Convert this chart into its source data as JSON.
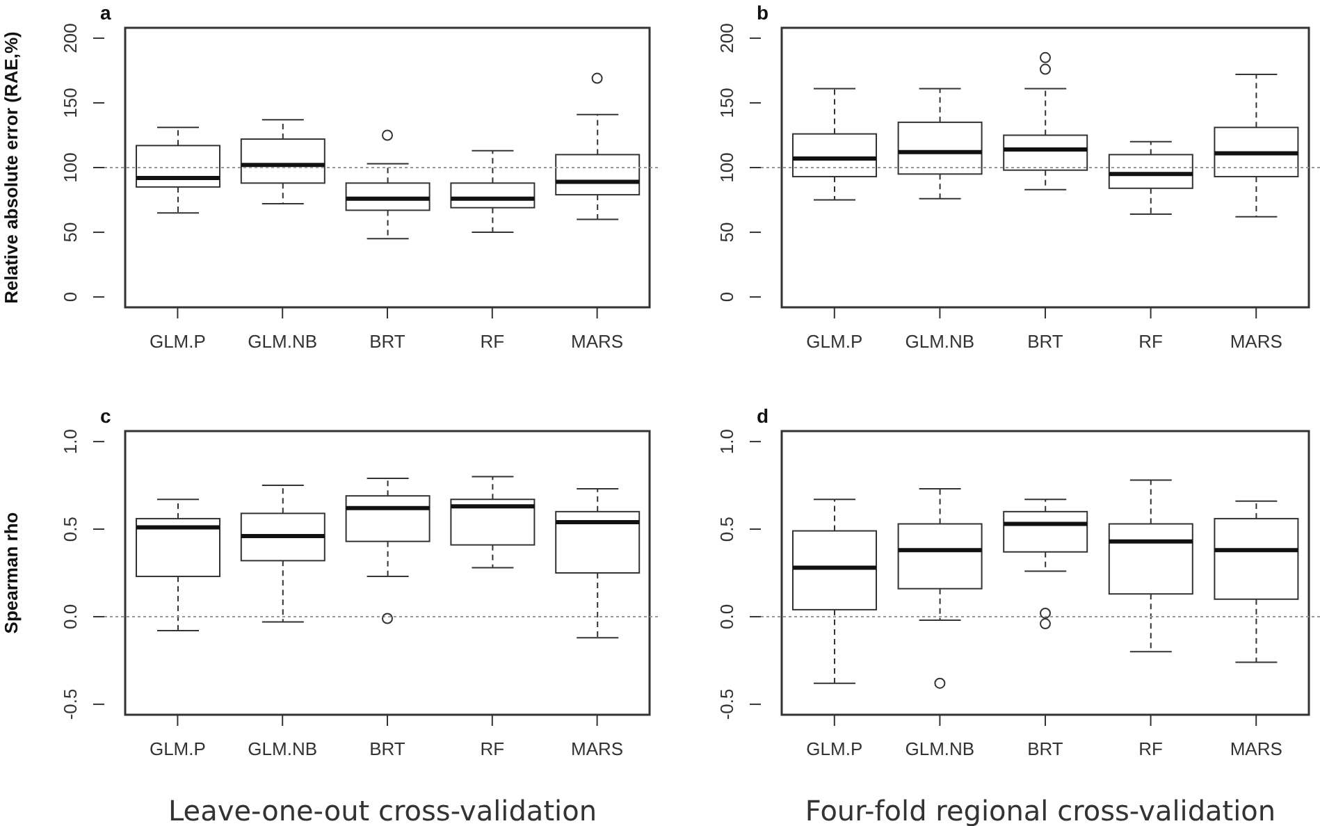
{
  "chart_data": [
    {
      "type": "box",
      "title": "a",
      "ylabel": "Relative absolute error (RAE,%)",
      "categories": [
        "GLM.P",
        "GLM.NB",
        "BRT",
        "RF",
        "MARS"
      ],
      "ylim": [
        -8,
        208
      ],
      "yticks": [
        0,
        50,
        100,
        150,
        200
      ],
      "ref_lines": [
        {
          "axis": "y",
          "value": 100,
          "line_style": "dotted",
          "color": "#999999"
        }
      ],
      "boxes": [
        {
          "low": 65,
          "q1": 85,
          "median": 92,
          "q3": 117,
          "high": 131
        },
        {
          "low": 72,
          "q1": 88,
          "median": 102,
          "q3": 122,
          "high": 137
        },
        {
          "low": 45,
          "q1": 67,
          "median": 76,
          "q3": 88,
          "high": 103,
          "outliers": [
            125
          ]
        },
        {
          "low": 50,
          "q1": 69,
          "median": 76,
          "q3": 88,
          "high": 113
        },
        {
          "low": 60,
          "q1": 79,
          "median": 89,
          "q3": 110,
          "high": 141,
          "outliers": [
            169
          ]
        }
      ]
    },
    {
      "type": "box",
      "title": "b",
      "categories": [
        "GLM.P",
        "GLM.NB",
        "BRT",
        "RF",
        "MARS"
      ],
      "ylim": [
        -8,
        208
      ],
      "yticks": [
        0,
        50,
        100,
        150,
        200
      ],
      "ref_lines": [
        {
          "axis": "y",
          "value": 100,
          "line_style": "dotted",
          "color": "#999999"
        }
      ],
      "boxes": [
        {
          "low": 75,
          "q1": 93,
          "median": 107,
          "q3": 126,
          "high": 161
        },
        {
          "low": 76,
          "q1": 95,
          "median": 112,
          "q3": 135,
          "high": 161
        },
        {
          "low": 83,
          "q1": 98,
          "median": 114,
          "q3": 125,
          "high": 161,
          "outliers": [
            176,
            185
          ]
        },
        {
          "low": 64,
          "q1": 84,
          "median": 95,
          "q3": 110,
          "high": 120
        },
        {
          "low": 62,
          "q1": 93,
          "median": 111,
          "q3": 131,
          "high": 172
        }
      ]
    },
    {
      "type": "box",
      "title": "c",
      "ylabel": "Spearman rho",
      "xlabel": "Leave-one-out cross-validation",
      "categories": [
        "GLM.P",
        "GLM.NB",
        "BRT",
        "RF",
        "MARS"
      ],
      "ylim": [
        -0.56,
        1.06
      ],
      "yticks": [
        {
          "value": -0.5,
          "label": "-0.5"
        },
        {
          "value": 0,
          "label": "0.0"
        },
        {
          "value": 0.5,
          "label": "0.5"
        },
        {
          "value": 1,
          "label": "1.0"
        }
      ],
      "ref_lines": [
        {
          "axis": "y",
          "value": 0,
          "line_style": "dotted",
          "color": "#999999"
        }
      ],
      "boxes": [
        {
          "low": -0.08,
          "q1": 0.23,
          "median": 0.51,
          "q3": 0.56,
          "high": 0.67
        },
        {
          "low": -0.03,
          "q1": 0.32,
          "median": 0.46,
          "q3": 0.59,
          "high": 0.75
        },
        {
          "low": 0.23,
          "q1": 0.43,
          "median": 0.62,
          "q3": 0.69,
          "high": 0.79,
          "outliers": [
            -0.01
          ]
        },
        {
          "low": 0.28,
          "q1": 0.41,
          "median": 0.63,
          "q3": 0.67,
          "high": 0.8
        },
        {
          "low": -0.12,
          "q1": 0.25,
          "median": 0.54,
          "q3": 0.6,
          "high": 0.73
        }
      ]
    },
    {
      "type": "box",
      "title": "d",
      "xlabel": "Four-fold regional cross-validation",
      "categories": [
        "GLM.P",
        "GLM.NB",
        "BRT",
        "RF",
        "MARS"
      ],
      "ylim": [
        -0.56,
        1.06
      ],
      "yticks": [
        {
          "value": -0.5,
          "label": "-0.5"
        },
        {
          "value": 0,
          "label": "0.0"
        },
        {
          "value": 0.5,
          "label": "0.5"
        },
        {
          "value": 1,
          "label": "1.0"
        }
      ],
      "ref_lines": [
        {
          "axis": "y",
          "value": 0,
          "line_style": "dotted",
          "color": "#999999"
        }
      ],
      "boxes": [
        {
          "low": -0.38,
          "q1": 0.04,
          "median": 0.28,
          "q3": 0.49,
          "high": 0.67
        },
        {
          "low": -0.02,
          "q1": 0.16,
          "median": 0.38,
          "q3": 0.53,
          "high": 0.73,
          "outliers": [
            -0.38
          ]
        },
        {
          "low": 0.26,
          "q1": 0.37,
          "median": 0.53,
          "q3": 0.6,
          "high": 0.67,
          "outliers": [
            0.02,
            -0.04
          ]
        },
        {
          "low": -0.2,
          "q1": 0.13,
          "median": 0.43,
          "q3": 0.53,
          "high": 0.78
        },
        {
          "low": -0.26,
          "q1": 0.1,
          "median": 0.38,
          "q3": 0.56,
          "high": 0.66
        }
      ]
    }
  ]
}
